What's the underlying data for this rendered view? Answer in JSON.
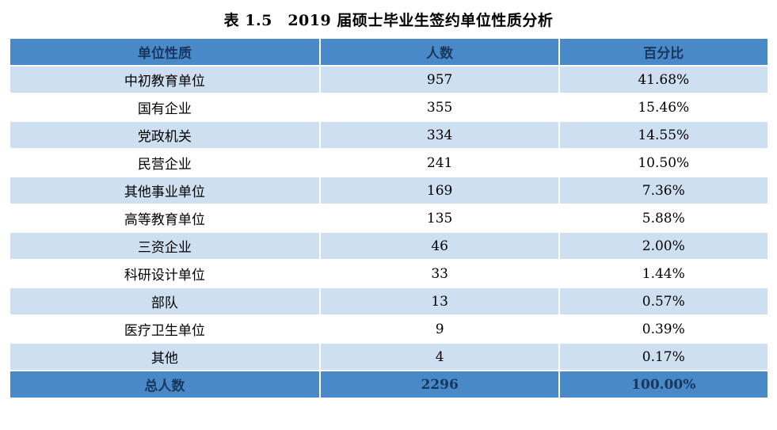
{
  "title": "表 1.5　2019 届硕士毕业生签约单位性质分析",
  "colors": {
    "header_bg": "#4a89c7",
    "header_text": "#17375e",
    "row_alt_bg": "#cedff1",
    "row_bg": "#ffffff",
    "body_text": "#000000"
  },
  "chart_data": {
    "type": "table",
    "title": "表 1.5　2019 届硕士毕业生签约单位性质分析",
    "columns": [
      "单位性质",
      "人数",
      "百分比"
    ],
    "rows": [
      [
        "中初教育单位",
        "957",
        "41.68%"
      ],
      [
        "国有企业",
        "355",
        "15.46%"
      ],
      [
        "党政机关",
        "334",
        "14.55%"
      ],
      [
        "民营企业",
        "241",
        "10.50%"
      ],
      [
        "其他事业单位",
        "169",
        "7.36%"
      ],
      [
        "高等教育单位",
        "135",
        "5.88%"
      ],
      [
        "三资企业",
        "46",
        "2.00%"
      ],
      [
        "科研设计单位",
        "33",
        "1.44%"
      ],
      [
        "部队",
        "13",
        "0.57%"
      ],
      [
        "医疗卫生单位",
        "9",
        "0.39%"
      ],
      [
        "其他",
        "4",
        "0.17%"
      ]
    ],
    "footer": [
      "总人数",
      "2296",
      "100.00%"
    ]
  }
}
